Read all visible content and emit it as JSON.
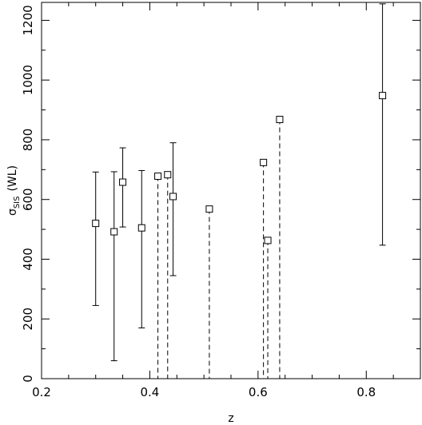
{
  "chart_data": {
    "type": "scatter",
    "xlabel": "z",
    "ylabel_main": "σ",
    "ylabel_sub": "SIS",
    "ylabel_suffix": "(WL)",
    "xlim": [
      0.2,
      0.9
    ],
    "ylim": [
      0,
      1260
    ],
    "xticks": [
      0.2,
      0.4,
      0.6,
      0.8
    ],
    "xtick_labels": [
      "0.2",
      "0.4",
      "0.6",
      "0.8"
    ],
    "yticks": [
      0,
      200,
      400,
      600,
      800,
      1000,
      1200
    ],
    "ytick_labels": [
      "0",
      "200",
      "400",
      "600",
      "800",
      "1000",
      "1200"
    ],
    "grid": false,
    "series": [
      {
        "errorbar_style": "solid",
        "x": [
          0.3,
          0.334,
          0.35,
          0.385,
          0.443,
          0.83
        ],
        "y": [
          520,
          492,
          658,
          505,
          610,
          948
        ],
        "y_low": [
          245,
          60,
          508,
          170,
          345,
          447
        ],
        "y_high": [
          692,
          693,
          773,
          697,
          790,
          1255
        ]
      },
      {
        "errorbar_style": "dashed",
        "x": [
          0.415,
          0.433,
          0.51,
          0.61,
          0.618,
          0.64
        ],
        "y": [
          678,
          683,
          568,
          724,
          463,
          868
        ],
        "y_low": [
          0,
          0,
          0,
          0,
          0,
          0
        ],
        "y_high": [
          678,
          683,
          568,
          724,
          463,
          868
        ]
      }
    ]
  }
}
